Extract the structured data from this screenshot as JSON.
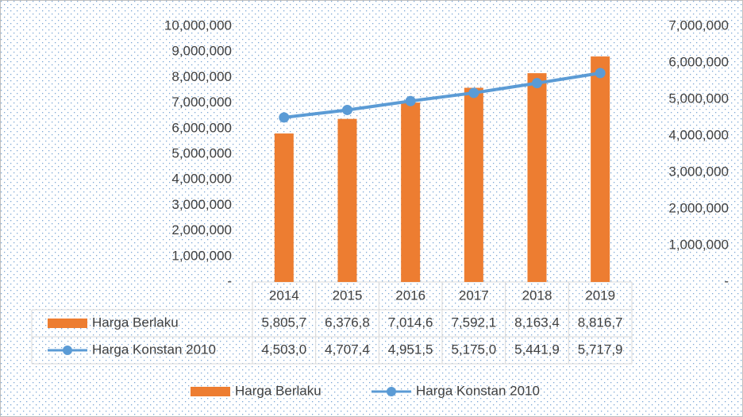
{
  "chart_data": {
    "type": "bar",
    "categories": [
      "2014",
      "2015",
      "2016",
      "2017",
      "2018",
      "2019"
    ],
    "series": [
      {
        "name": "Harga Berlaku",
        "type": "bar",
        "color": "#ed7d31",
        "axis": "y",
        "values": [
          5805700,
          6376800,
          7014600,
          7592100,
          8163400,
          8816700
        ],
        "value_labels": [
          "5,805,7",
          "6,376,8",
          "7,014,6",
          "7,592,1",
          "8,163,4",
          "8,816,7"
        ]
      },
      {
        "name": "Harga Konstan 2010",
        "type": "line",
        "color": "#5b9bd5",
        "axis": "y2",
        "values": [
          4503000,
          4707400,
          4951500,
          5175000,
          5441900,
          5717900
        ],
        "value_labels": [
          "4,503,0",
          "4,707,4",
          "4,951,5",
          "5,175,0",
          "5,441,9",
          "5,717,9"
        ]
      }
    ],
    "ylim": [
      0,
      10000000
    ],
    "yticks": [
      {
        "value": 0,
        "label": "-"
      },
      {
        "value": 1000000,
        "label": "1,000,000"
      },
      {
        "value": 2000000,
        "label": "2,000,000"
      },
      {
        "value": 3000000,
        "label": "3,000,000"
      },
      {
        "value": 4000000,
        "label": "4,000,000"
      },
      {
        "value": 5000000,
        "label": "5,000,000"
      },
      {
        "value": 6000000,
        "label": "6,000,000"
      },
      {
        "value": 7000000,
        "label": "7,000,000"
      },
      {
        "value": 8000000,
        "label": "8,000,000"
      },
      {
        "value": 9000000,
        "label": "9,000,000"
      },
      {
        "value": 10000000,
        "label": "10,000,000"
      }
    ],
    "y2lim": [
      0,
      7000000
    ],
    "y2ticks": [
      {
        "value": 0,
        "label": "-"
      },
      {
        "value": 1000000,
        "label": "1,000,000"
      },
      {
        "value": 2000000,
        "label": "2,000,000"
      },
      {
        "value": 3000000,
        "label": "3,000,000"
      },
      {
        "value": 4000000,
        "label": "4,000,000"
      },
      {
        "value": 5000000,
        "label": "5,000,000"
      },
      {
        "value": 6000000,
        "label": "6,000,000"
      },
      {
        "value": 7000000,
        "label": "7,000,000"
      }
    ],
    "legend": "bottom",
    "data_table": true
  }
}
